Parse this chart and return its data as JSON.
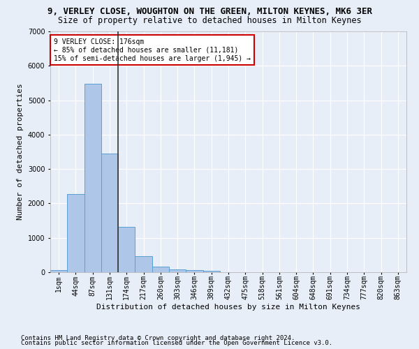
{
  "title": "9, VERLEY CLOSE, WOUGHTON ON THE GREEN, MILTON KEYNES, MK6 3ER",
  "subtitle": "Size of property relative to detached houses in Milton Keynes",
  "xlabel": "Distribution of detached houses by size in Milton Keynes",
  "ylabel": "Number of detached properties",
  "categories": [
    "1sqm",
    "44sqm",
    "87sqm",
    "131sqm",
    "174sqm",
    "217sqm",
    "260sqm",
    "303sqm",
    "346sqm",
    "389sqm",
    "432sqm",
    "475sqm",
    "518sqm",
    "561sqm",
    "604sqm",
    "648sqm",
    "691sqm",
    "734sqm",
    "777sqm",
    "820sqm",
    "863sqm"
  ],
  "values": [
    70,
    2280,
    5470,
    3440,
    1310,
    470,
    170,
    90,
    70,
    45,
    0,
    0,
    0,
    0,
    0,
    0,
    0,
    0,
    0,
    0,
    0
  ],
  "bar_color": "#aec6e8",
  "bar_edge_color": "#5a9fd4",
  "vline_pos": 3.5,
  "vline_color": "#333333",
  "annotation_title": "9 VERLEY CLOSE: 176sqm",
  "annotation_line1": "← 85% of detached houses are smaller (11,181)",
  "annotation_line2": "15% of semi-detached houses are larger (1,945) →",
  "annotation_box_color": "#ffffff",
  "annotation_box_edge": "#cc0000",
  "ylim": [
    0,
    7000
  ],
  "yticks": [
    0,
    1000,
    2000,
    3000,
    4000,
    5000,
    6000,
    7000
  ],
  "footnote1": "Contains HM Land Registry data © Crown copyright and database right 2024.",
  "footnote2": "Contains public sector information licensed under the Open Government Licence v3.0.",
  "background_color": "#e8eef8",
  "grid_color": "#ffffff",
  "title_fontsize": 9,
  "subtitle_fontsize": 8.5,
  "axis_label_fontsize": 8,
  "tick_fontsize": 7,
  "footnote_fontsize": 6.5
}
